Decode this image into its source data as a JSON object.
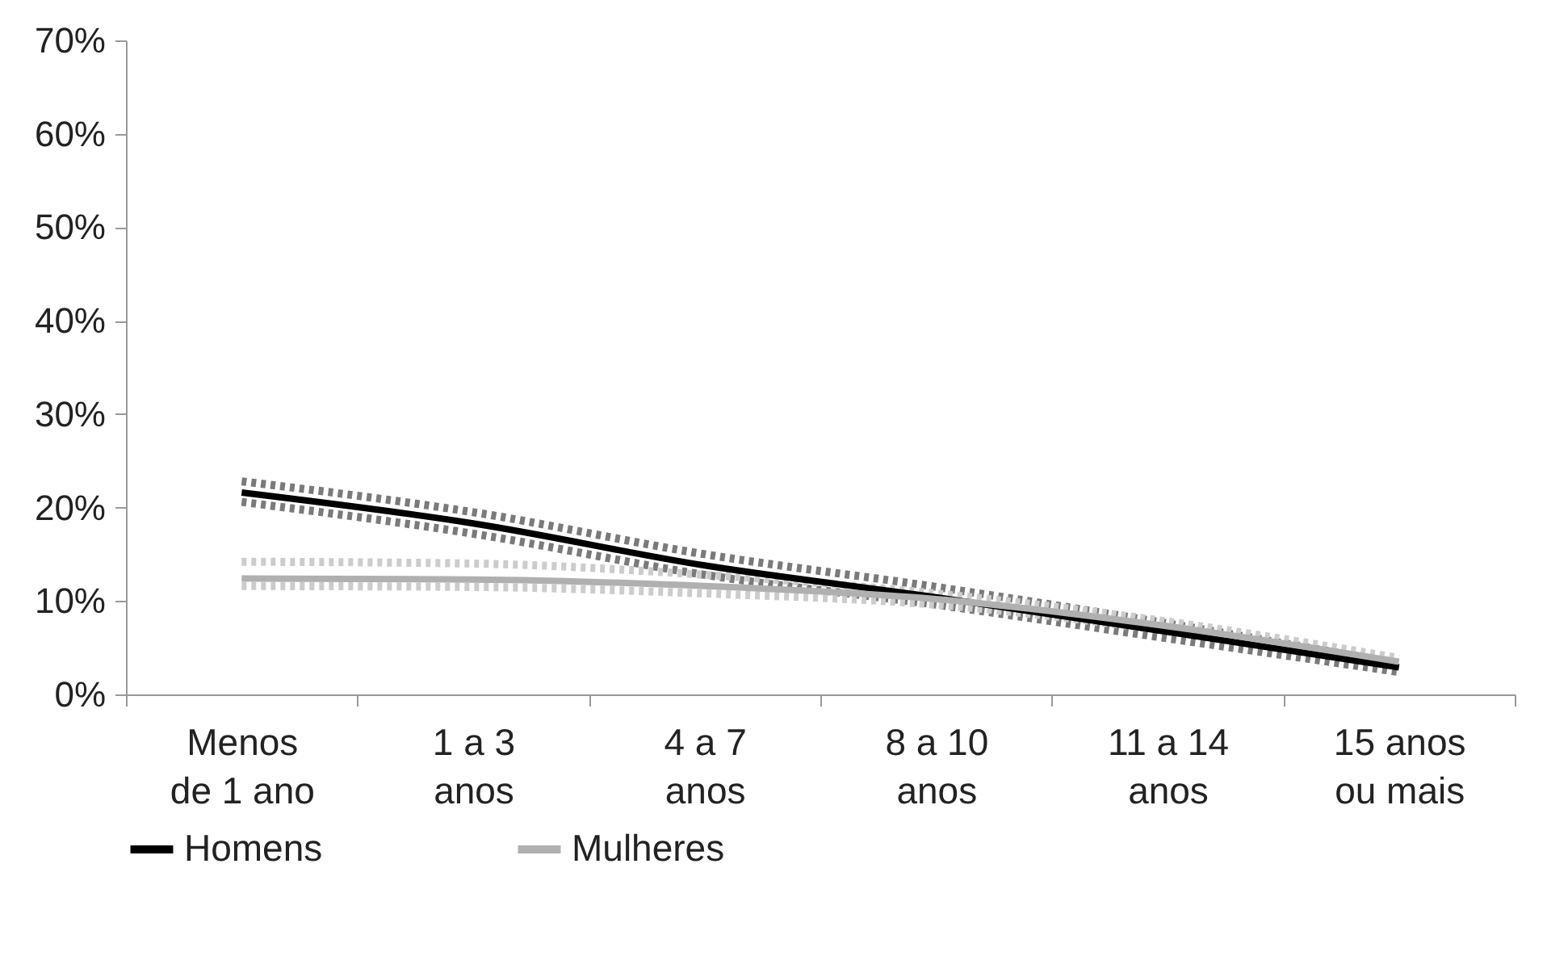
{
  "chart_data": {
    "type": "line",
    "categories": [
      "Menos de 1 ano",
      "1 a 3 anos",
      "4 a 7 anos",
      "8 a 10 anos",
      "11 a 14 anos",
      "15 anos ou mais"
    ],
    "series": [
      {
        "color": "#7a7a7a",
        "line_style": "dotted",
        "values": [
          22.8,
          19.5,
          15.0,
          11.5,
          7.6,
          3.3
        ]
      },
      {
        "color": "#7a7a7a",
        "line_style": "dotted",
        "values": [
          20.6,
          17.2,
          12.8,
          9.6,
          6.0,
          2.4
        ]
      },
      {
        "color": "#cccccc",
        "line_style": "dotted",
        "values": [
          14.2,
          14.0,
          12.8,
          10.8,
          7.8,
          3.9
        ]
      },
      {
        "color": "#cccccc",
        "line_style": "dotted",
        "values": [
          11.6,
          11.5,
          10.8,
          9.6,
          6.8,
          3.1
        ]
      },
      {
        "name": "Homens",
        "color": "#000000",
        "values": [
          21.6,
          18.3,
          13.8,
          10.4,
          6.7,
          2.9
        ]
      },
      {
        "name": "Mulheres",
        "color": "#b0b0b0",
        "values": [
          12.4,
          12.3,
          11.6,
          10.2,
          7.3,
          3.5
        ]
      }
    ],
    "ylim": [
      0,
      70
    ],
    "yticks": [
      {
        "value": 0,
        "label": "0%"
      },
      {
        "value": 10,
        "label": "10%"
      },
      {
        "value": 20,
        "label": "20%"
      },
      {
        "value": 30,
        "label": "30%"
      },
      {
        "value": 40,
        "label": "40%"
      },
      {
        "value": 50,
        "label": "50%"
      },
      {
        "value": 60,
        "label": "60%"
      },
      {
        "value": 70,
        "label": "70%"
      }
    ],
    "grid": false,
    "legend": "bottom",
    "line_style": "solid"
  }
}
